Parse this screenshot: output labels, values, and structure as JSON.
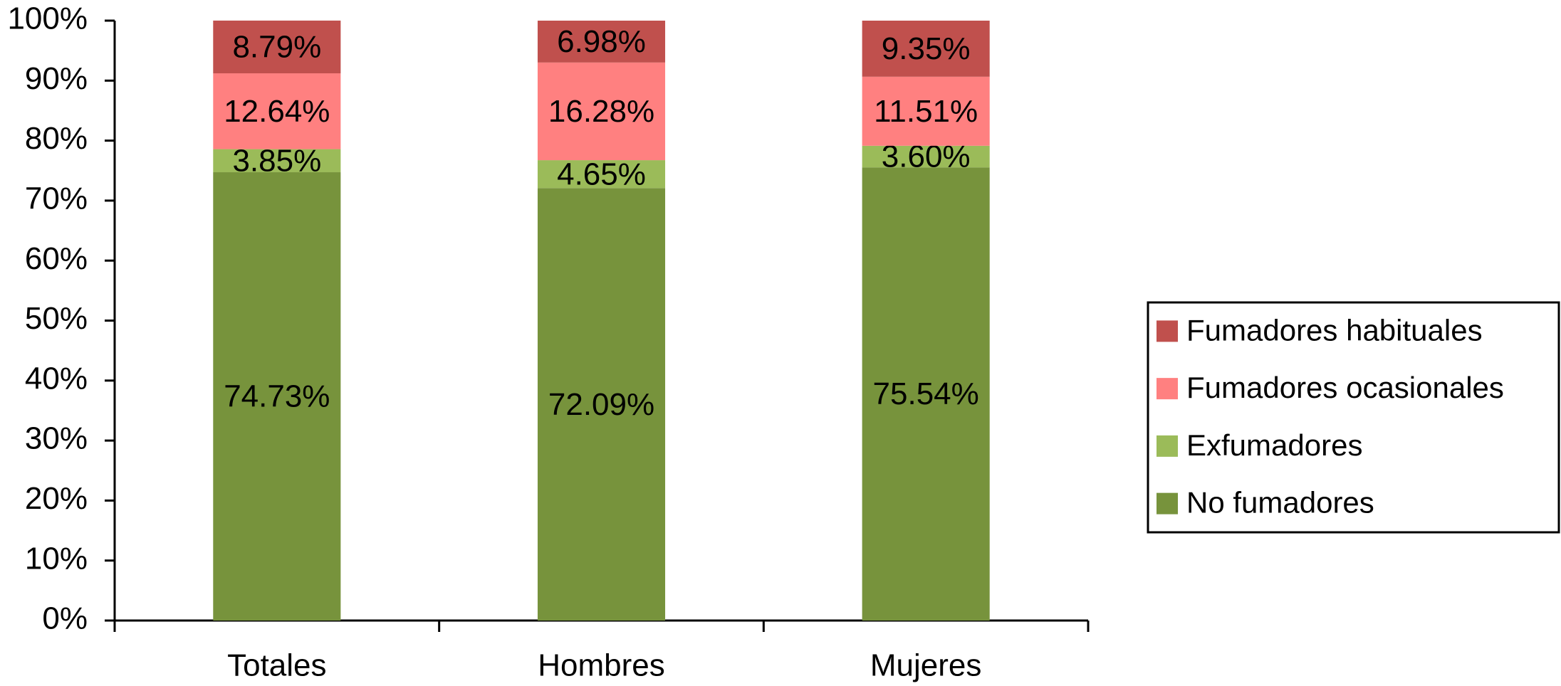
{
  "chart_data": {
    "type": "stacked-bar",
    "categories": [
      "Totales",
      "Hombres",
      "Mujeres"
    ],
    "series": [
      {
        "name": "No fumadores",
        "color": "#77933c",
        "values": [
          74.73,
          72.09,
          75.54
        ],
        "value_labels": [
          "74.73%",
          "72.09%",
          "75.54%"
        ]
      },
      {
        "name": "Exfumadores",
        "color": "#9bbb59",
        "values": [
          3.85,
          4.65,
          3.6
        ],
        "value_labels": [
          "3.85%",
          "4.65%",
          "3.60%"
        ]
      },
      {
        "name": "Fumadores ocasionales",
        "color": "#ff8080",
        "values": [
          12.64,
          16.28,
          11.51
        ],
        "value_labels": [
          "12.64%",
          "16.28%",
          "11.51%"
        ]
      },
      {
        "name": "Fumadores habituales",
        "color": "#c0504d",
        "values": [
          8.79,
          6.98,
          9.35
        ],
        "value_labels": [
          "8.79%",
          "6.98%",
          "9.35%"
        ]
      }
    ],
    "ylim": [
      0,
      100
    ],
    "yticks": [
      {
        "value": 0,
        "label": "0%"
      },
      {
        "value": 10,
        "label": "10%"
      },
      {
        "value": 20,
        "label": "20%"
      },
      {
        "value": 30,
        "label": "30%"
      },
      {
        "value": 40,
        "label": "40%"
      },
      {
        "value": 50,
        "label": "50%"
      },
      {
        "value": 60,
        "label": "60%"
      },
      {
        "value": 70,
        "label": "70%"
      },
      {
        "value": 80,
        "label": "80%"
      },
      {
        "value": 90,
        "label": "90%"
      },
      {
        "value": 100,
        "label": "100%"
      }
    ],
    "grid": false,
    "legend": "right"
  }
}
